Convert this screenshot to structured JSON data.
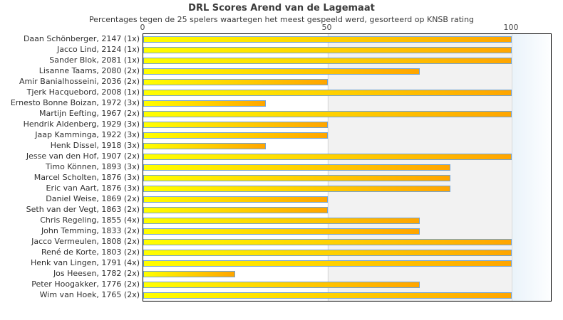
{
  "header": {
    "title": "DRL Scores Arend van de Lagemaat",
    "subtitle": "Percentages tegen de 25 spelers waartegen het meest gespeeld werd, gesorteerd op KNSB rating"
  },
  "chart_data": {
    "type": "bar",
    "orientation": "horizontal",
    "title": "DRL Scores Arend van de Lagemaat",
    "subtitle": "Percentages tegen de 25 spelers waartegen het meest gespeeld werd, gesorteerd op KNSB rating",
    "xlabel": "",
    "ylabel": "",
    "xlim": [
      0,
      110.6
    ],
    "ticks": [
      0,
      50,
      100
    ],
    "tick_position": "top",
    "grid": "vertical gridlines at 50 and 100; shaded gray band from 50 to 100; light azure band beyond 100",
    "legend": "none",
    "players": [
      {
        "label": "Daan Schönberger, 2147 (1x)",
        "value": 100
      },
      {
        "label": "Jacco Lind, 2124 (1x)",
        "value": 100
      },
      {
        "label": "Sander Blok, 2081 (1x)",
        "value": 100
      },
      {
        "label": "Lisanne Taams, 2080 (2x)",
        "value": 75
      },
      {
        "label": "Amir Banialhosseini, 2036 (2x)",
        "value": 50
      },
      {
        "label": "Tjerk Hacquebord, 2008 (1x)",
        "value": 100
      },
      {
        "label": "Ernesto Bonne Boizan, 1972 (3x)",
        "value": 33.3
      },
      {
        "label": "Martijn Eefting, 1967 (2x)",
        "value": 100
      },
      {
        "label": "Hendrik Aldenberg, 1929 (3x)",
        "value": 50
      },
      {
        "label": "Jaap Kamminga, 1922 (3x)",
        "value": 50
      },
      {
        "label": "Henk Dissel, 1918 (3x)",
        "value": 33.3
      },
      {
        "label": "Jesse van den Hof, 1907 (2x)",
        "value": 100
      },
      {
        "label": "Timo Können, 1893 (3x)",
        "value": 83.3
      },
      {
        "label": "Marcel Scholten, 1876 (3x)",
        "value": 83.3
      },
      {
        "label": "Eric van Aart, 1876 (3x)",
        "value": 83.3
      },
      {
        "label": "Daniel Weise, 1869 (2x)",
        "value": 50
      },
      {
        "label": "Seth van der Vegt, 1863 (2x)",
        "value": 50
      },
      {
        "label": "Chris Regeling, 1855 (4x)",
        "value": 75
      },
      {
        "label": "John Temming, 1833 (2x)",
        "value": 75
      },
      {
        "label": "Jacco Vermeulen, 1808 (2x)",
        "value": 100
      },
      {
        "label": "René de Korte, 1803 (2x)",
        "value": 100
      },
      {
        "label": "Henk van Lingen, 1791 (4x)",
        "value": 100
      },
      {
        "label": "Jos Heesen, 1782 (2x)",
        "value": 25
      },
      {
        "label": "Peter Hoogakker, 1776 (2x)",
        "value": 75
      },
      {
        "label": "Wim van Hoek, 1765 (2x)",
        "value": 100
      }
    ],
    "colors": {
      "bar_gradient_start": "#ffff00",
      "bar_gradient_end": "#ffa500",
      "bar_border": "#72a3d4",
      "band_white": "#ffffff",
      "band_gray": "#f2f2f2",
      "band_right_start": "#eaf3fa",
      "band_right_end": "#fdfeff",
      "gridline": "#d9d9d9",
      "plot_border": "#000000",
      "text": "#3b3b3b"
    }
  }
}
